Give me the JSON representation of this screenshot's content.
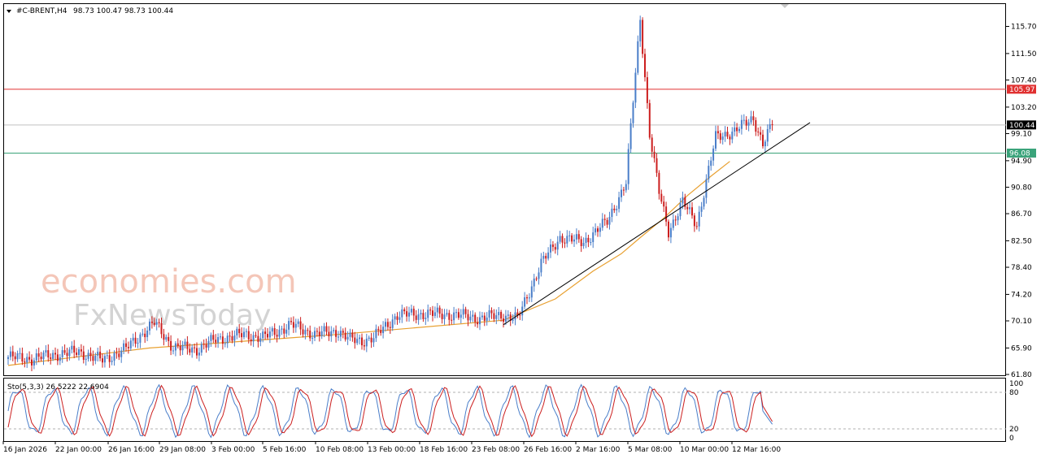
{
  "header": {
    "symbol": "#C-BRENT,H4",
    "ohlc": "98.73 100.47 98.73 100.44"
  },
  "watermark": {
    "line1": "economies.com",
    "line2": "FxNewsToday"
  },
  "stochastic": {
    "label": "Sto(5,3,3) 26.5222 22.6904",
    "levels": [
      "100",
      "80",
      "20",
      "0"
    ],
    "main_color": "#4a7ec9",
    "signal_color": "#cc1f1f"
  },
  "price_labels": {
    "resistance": "105.97",
    "current": "100.44",
    "support": "96.08"
  },
  "chart_data": {
    "type": "candlestick",
    "symbol": "#C-BRENT",
    "timeframe": "H4",
    "y_ticks": [
      "115.70",
      "111.50",
      "107.40",
      "103.20",
      "99.10",
      "94.90",
      "90.80",
      "86.70",
      "82.50",
      "78.40",
      "74.20",
      "70.10",
      "65.90",
      "61.80"
    ],
    "ylim": [
      61.8,
      117.5
    ],
    "x_ticks": [
      "16 Jan 2026",
      "22 Jan 00:00",
      "26 Jan 16:00",
      "29 Jan 08:00",
      "3 Feb 00:00",
      "5 Feb 16:00",
      "10 Feb 08:00",
      "13 Feb 00:00",
      "18 Feb 16:00",
      "23 Feb 08:00",
      "26 Feb 16:00",
      "2 Mar 16:00",
      "5 Mar 08:00",
      "10 Mar 00:00",
      "12 Mar 16:00"
    ],
    "horizontal_levels": [
      {
        "value": 105.97,
        "color": "#e03030"
      },
      {
        "value": 100.44,
        "color": "#c0c0c0"
      },
      {
        "value": 96.08,
        "color": "#3aa37a"
      }
    ],
    "ohlc_anchors": [
      [
        0,
        64.5
      ],
      [
        10,
        64.2
      ],
      [
        20,
        64.9
      ],
      [
        30,
        65.3
      ],
      [
        40,
        64.0
      ],
      [
        50,
        65.8
      ],
      [
        55,
        67.5
      ],
      [
        62,
        69.8
      ],
      [
        70,
        66.0
      ],
      [
        80,
        65.7
      ],
      [
        88,
        67.2
      ],
      [
        100,
        68.0
      ],
      [
        108,
        67.5
      ],
      [
        120,
        69.5
      ],
      [
        130,
        68.0
      ],
      [
        140,
        68.5
      ],
      [
        145,
        67.2
      ],
      [
        150,
        67.0
      ],
      [
        155,
        67.5
      ],
      [
        165,
        71.0
      ],
      [
        178,
        71.2
      ],
      [
        190,
        71.0
      ],
      [
        200,
        70.5
      ],
      [
        210,
        71.0
      ],
      [
        216,
        70.4
      ],
      [
        226,
        79.0
      ],
      [
        234,
        83.0
      ],
      [
        244,
        82.3
      ],
      [
        254,
        85.5
      ],
      [
        260,
        90.0
      ],
      [
        262,
        91.5
      ],
      [
        268,
        117.0
      ],
      [
        272,
        99.0
      ],
      [
        276,
        90.0
      ],
      [
        280,
        84.0
      ],
      [
        286,
        88.5
      ],
      [
        292,
        85.0
      ],
      [
        300,
        98.5
      ],
      [
        308,
        99.5
      ],
      [
        316,
        101.5
      ],
      [
        320,
        97.5
      ],
      [
        324,
        100.44
      ]
    ],
    "ma_anchors": [
      [
        0,
        63.2
      ],
      [
        60,
        65.9
      ],
      [
        140,
        68.0
      ],
      [
        210,
        70.2
      ],
      [
        232,
        73.5
      ],
      [
        248,
        77.8
      ],
      [
        260,
        80.5
      ],
      [
        268,
        83.0
      ],
      [
        278,
        86.0
      ],
      [
        288,
        89.5
      ],
      [
        298,
        92.5
      ],
      [
        306,
        94.8
      ]
    ],
    "trendline": {
      "from": [
        210,
        69.5
      ],
      "to": [
        340,
        100.8
      ]
    },
    "stochastic_levels": [
      80,
      20
    ]
  }
}
